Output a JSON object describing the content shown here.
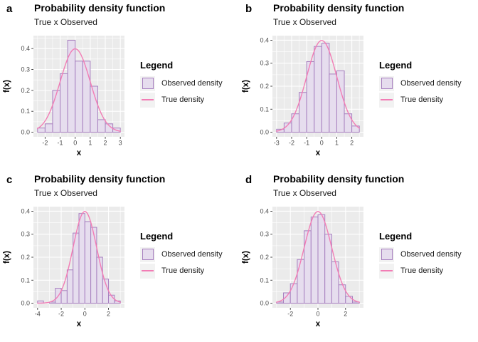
{
  "colors": {
    "page_bg": "#FFFFFF",
    "panel_bg": "#EBEBEB",
    "grid": "#FFFFFF",
    "bar_fill": "#E6DDEE",
    "bar_stroke": "#A77FBF",
    "curve": "#F27DB5",
    "axis_text": "#4D4D4D",
    "tick_mark": "#333333",
    "title_text": "#000000",
    "legend_key_bg": "#F2F2F2"
  },
  "legend": {
    "title": "Legend",
    "items": [
      {
        "label": "Observed density",
        "swatch": "box"
      },
      {
        "label": "True density",
        "swatch": "line"
      }
    ]
  },
  "chart_data": [
    {
      "tag": "a",
      "type": "bar",
      "title": "Probability density function",
      "subtitle": "True x Observed",
      "xlabel": "x",
      "ylabel": "f(x)",
      "series": [
        {
          "name": "Observed density",
          "type": "histogram"
        },
        {
          "name": "True density",
          "type": "line"
        }
      ],
      "bin_start": -2.5,
      "bin_width": 0.5,
      "bar_heights": [
        0.02,
        0.04,
        0.2,
        0.28,
        0.44,
        0.34,
        0.34,
        0.22,
        0.06,
        0.04,
        0.02
      ],
      "curve": {
        "shape": "normal_pdf",
        "mean": 0,
        "sd": 1
      },
      "x_ticks": [
        -2,
        -1,
        0,
        1,
        2,
        3
      ],
      "y_ticks": [
        0.0,
        0.1,
        0.2,
        0.3,
        0.4
      ],
      "xlim": [
        -2.775,
        3.275
      ],
      "ylim": [
        -0.022,
        0.462
      ],
      "grid": true,
      "legend_position": "right"
    },
    {
      "tag": "b",
      "type": "bar",
      "title": "Probability density function",
      "subtitle": "True x Observed",
      "xlabel": "x",
      "ylabel": "f(x)",
      "series": [
        {
          "name": "Observed density",
          "type": "histogram"
        },
        {
          "name": "True density",
          "type": "line"
        }
      ],
      "bin_start": -3.0,
      "bin_width": 0.5,
      "bar_heights": [
        0.013,
        0.04,
        0.08,
        0.173,
        0.307,
        0.373,
        0.387,
        0.253,
        0.267,
        0.08,
        0.027
      ],
      "curve": {
        "shape": "normal_pdf",
        "mean": 0,
        "sd": 1
      },
      "x_ticks": [
        -3,
        -2,
        -1,
        0,
        1,
        2
      ],
      "y_ticks": [
        0.0,
        0.1,
        0.2,
        0.3,
        0.4
      ],
      "xlim": [
        -3.275,
        2.775
      ],
      "ylim": [
        -0.02,
        0.42
      ],
      "grid": true,
      "legend_position": "right"
    },
    {
      "tag": "c",
      "type": "bar",
      "title": "Probability density function",
      "subtitle": "True x Observed",
      "xlabel": "x",
      "ylabel": "f(x)",
      "series": [
        {
          "name": "Observed density",
          "type": "histogram"
        },
        {
          "name": "True density",
          "type": "line"
        }
      ],
      "bin_start": -4.0,
      "bin_width": 0.5,
      "bar_heights": [
        0.01,
        0,
        0.005,
        0.065,
        0.055,
        0.145,
        0.305,
        0.39,
        0.355,
        0.33,
        0.2,
        0.105,
        0.035,
        0.01
      ],
      "curve": {
        "shape": "normal_pdf",
        "mean": 0,
        "sd": 1
      },
      "x_ticks": [
        -4,
        -2,
        0,
        2
      ],
      "y_ticks": [
        0.0,
        0.1,
        0.2,
        0.3,
        0.4
      ],
      "xlim": [
        -4.35,
        3.35
      ],
      "ylim": [
        -0.02,
        0.42
      ],
      "grid": true,
      "legend_position": "right"
    },
    {
      "tag": "d",
      "type": "bar",
      "title": "Probability density function",
      "subtitle": "True x Observed",
      "xlabel": "x",
      "ylabel": "f(x)",
      "series": [
        {
          "name": "Observed density",
          "type": "histogram"
        },
        {
          "name": "True density",
          "type": "line"
        }
      ],
      "bin_start": -3.0,
      "bin_width": 0.5,
      "bar_heights": [
        0.005,
        0.045,
        0.085,
        0.19,
        0.315,
        0.375,
        0.385,
        0.3,
        0.18,
        0.08,
        0.03,
        0.005
      ],
      "curve": {
        "shape": "normal_pdf",
        "mean": 0,
        "sd": 1
      },
      "x_ticks": [
        -2,
        0,
        2
      ],
      "y_ticks": [
        0.0,
        0.1,
        0.2,
        0.3,
        0.4
      ],
      "xlim": [
        -3.3,
        3.3
      ],
      "ylim": [
        -0.02,
        0.42
      ],
      "grid": true,
      "legend_position": "right"
    }
  ]
}
